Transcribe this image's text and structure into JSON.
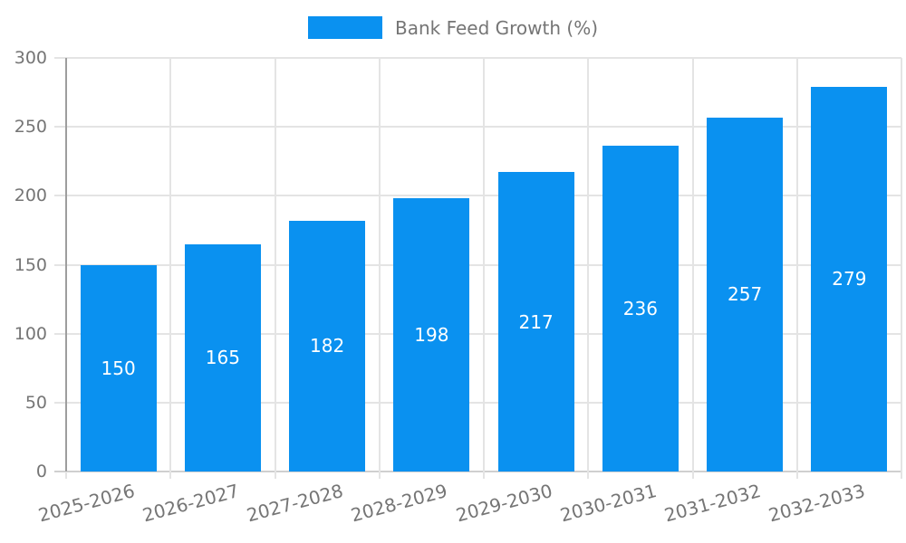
{
  "legend": {
    "label": "Bank Feed Growth (%)"
  },
  "colors": {
    "bar": "#0A91F0",
    "grid": "#E4E4E4",
    "baseline": "#CFCFCF",
    "axis": "#9E9E9E",
    "tick_text": "#757575",
    "value_label_text": "#FFFFFF",
    "background": "#FFFFFF"
  },
  "chart_data": {
    "type": "bar",
    "title": "",
    "xlabel": "",
    "ylabel": "",
    "categories": [
      "2025-2026",
      "2026-2027",
      "2027-2028",
      "2028-2029",
      "2029-2030",
      "2030-2031",
      "2031-2032",
      "2032-2033"
    ],
    "series": [
      {
        "name": "Bank Feed Growth (%)",
        "values": [
          150,
          165,
          182,
          198,
          217,
          236,
          257,
          279
        ]
      }
    ],
    "values": [
      150,
      165,
      182,
      198,
      217,
      236,
      257,
      279
    ],
    "bar_value_labels": [
      "150",
      "165",
      "182",
      "198",
      "217",
      "236",
      "257",
      "279"
    ],
    "ylim": [
      0,
      300
    ],
    "yticks": [
      0,
      50,
      100,
      150,
      200,
      250,
      300
    ],
    "grid": true,
    "legend_position": "top-center",
    "bar_label_position": "inside-center"
  }
}
